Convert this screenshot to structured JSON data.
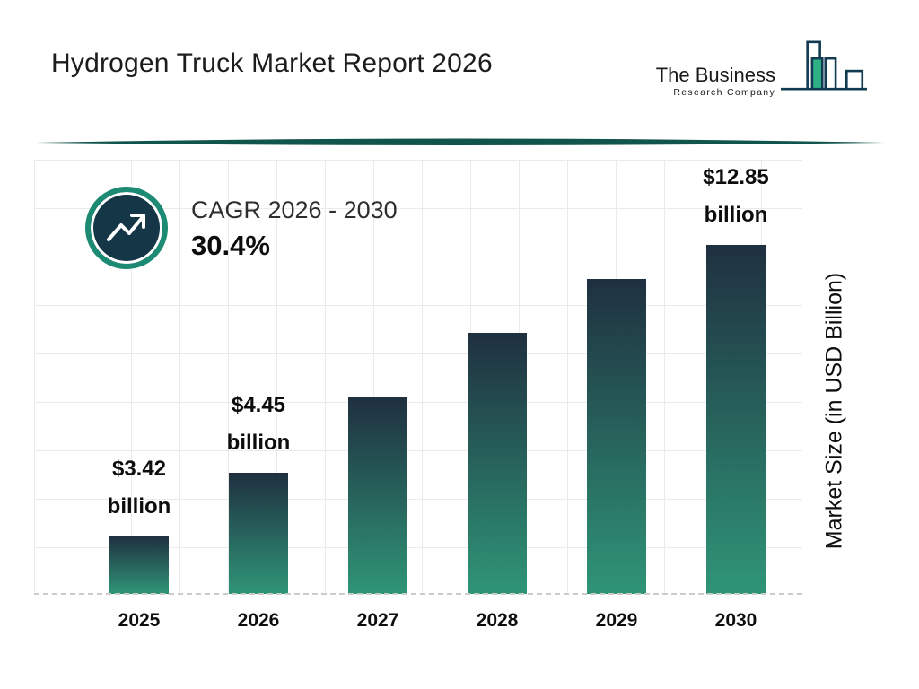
{
  "header": {
    "title": "Hydrogen Truck Market Report 2026",
    "logo": {
      "line1": "The Business",
      "line2": "Research Company"
    }
  },
  "cagr": {
    "label": "CAGR 2026 - 2030",
    "value": "30.4%"
  },
  "chart_data": {
    "type": "bar",
    "title": "Hydrogen Truck Market Report 2026",
    "categories": [
      "2025",
      "2026",
      "2027",
      "2028",
      "2029",
      "2030"
    ],
    "values": [
      3.42,
      4.45,
      5.8,
      7.57,
      9.87,
      12.85
    ],
    "value_labels": [
      {
        "line1": "$3.42",
        "line2": "billion"
      },
      {
        "line1": "$4.45",
        "line2": "billion"
      },
      null,
      null,
      null,
      {
        "line1": "$12.85",
        "line2": "billion"
      }
    ],
    "xlabel": "",
    "ylabel": "Market Size (in USD Billion)",
    "ylim": [
      0,
      14
    ],
    "grid": true,
    "legend": "none",
    "bar_heights_pct": [
      13.2,
      27.9,
      45.2,
      60.1,
      72.5,
      80.4
    ],
    "colors": {
      "bar_gradient_top": "#1f3040",
      "bar_gradient_bottom": "#2f9577",
      "divider": "#11544b",
      "accent_ring": "#1d8a74",
      "circle_fill": "#143647",
      "logo_navy": "#123b52",
      "logo_green": "#2fb188"
    }
  }
}
